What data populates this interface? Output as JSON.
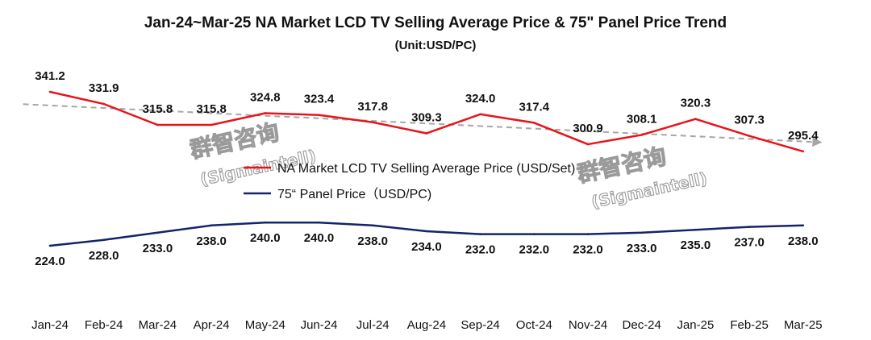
{
  "chart_data": {
    "type": "line",
    "title": "Jan-24~Mar-25 NA Market LCD TV Selling Average Price & 75\" Panel Price Trend",
    "subtitle": "(Unit:USD/PC)",
    "categories": [
      "Jan-24",
      "Feb-24",
      "Mar-24",
      "Apr-24",
      "May-24",
      "Jun-24",
      "Jul-24",
      "Aug-24",
      "Sep-24",
      "Oct-24",
      "Nov-24",
      "Dec-24",
      "Jan-25",
      "Feb-25",
      "Mar-25"
    ],
    "series": [
      {
        "name": "NA Market LCD TV Selling Average Price (USD/Set)",
        "color": "#e8141c",
        "values": [
          341.2,
          331.9,
          315.8,
          315.8,
          324.8,
          323.4,
          317.8,
          309.3,
          324.0,
          317.4,
          300.9,
          308.1,
          320.3,
          307.3,
          295.4
        ]
      },
      {
        "name": "75“ Panel Price（USD/PC)",
        "color": "#13246b",
        "values": [
          224.0,
          228.0,
          233.0,
          238.0,
          240.0,
          240.0,
          238.0,
          234.0,
          232.0,
          232.0,
          232.0,
          233.0,
          235.0,
          237.0,
          238.0
        ]
      }
    ],
    "trendline": {
      "series": 0,
      "style": "dashed",
      "color": "#a6a6a6"
    },
    "legend_position": "center",
    "grid": false
  },
  "watermark": {
    "line1": "群智咨询",
    "line2": "(Sigmaintell)"
  }
}
